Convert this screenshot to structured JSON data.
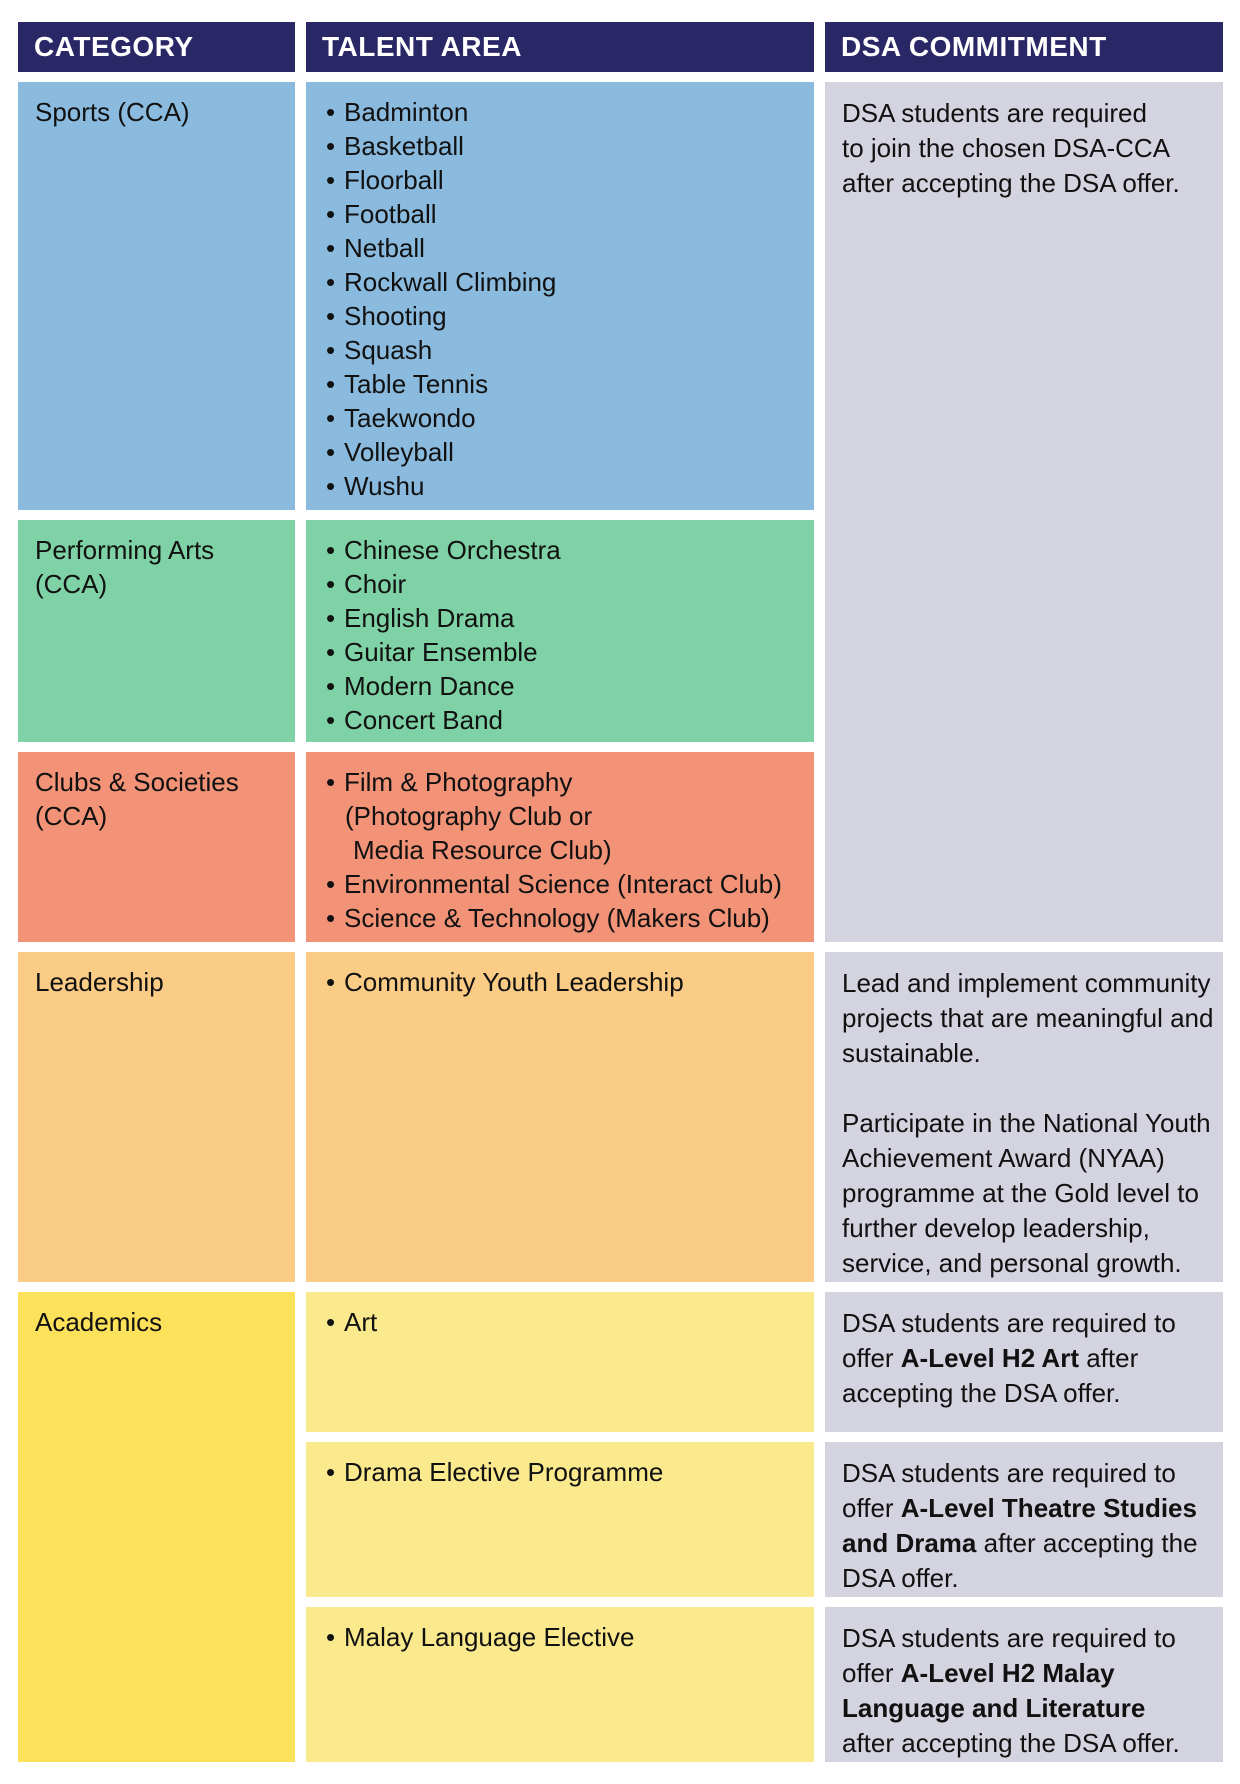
{
  "header": {
    "category": "CATEGORY",
    "talent_area": "TALENT AREA",
    "dsa_commitment": "DSA COMMITMENT"
  },
  "bullet": "•",
  "sports": {
    "category": "Sports (CCA)",
    "talents": [
      "Badminton",
      "Basketball",
      "Floorball",
      "Football",
      "Netball",
      "Rockwall Climbing",
      "Shooting",
      "Squash",
      "Table Tennis",
      "Taekwondo",
      "Volleyball",
      "Wushu"
    ],
    "commitment_lines": [
      "DSA students are required",
      "to join the chosen DSA-CCA",
      "after accepting the DSA offer."
    ]
  },
  "performing_arts": {
    "category": "Performing Arts (CCA)",
    "talents": [
      "Chinese Orchestra",
      "Choir",
      "English Drama",
      "Guitar Ensemble",
      "Modern Dance",
      "Concert Band"
    ]
  },
  "clubs": {
    "category": "Clubs & Societies (CCA)",
    "film_lines": [
      "Film & Photography",
      "(Photography Club or",
      "Media Resource Club)"
    ],
    "talents": [
      "Environmental Science (Interact Club)",
      "Science & Technology (Makers Club)"
    ]
  },
  "leadership": {
    "category": "Leadership",
    "talent": "Community Youth Leadership",
    "commitment_para1_lines": [
      "Lead and implement community",
      "projects that are meaningful and",
      "sustainable."
    ],
    "commitment_para2_lines": [
      "Participate in the National Youth",
      "Achievement Award (NYAA)",
      "programme at the Gold level to",
      "further develop leadership,",
      "service, and personal growth."
    ]
  },
  "academics": {
    "category": "Academics",
    "art": {
      "talent": "Art",
      "commitment_lines": [
        {
          "pre": "DSA students are required to",
          "bold": "",
          "post": ""
        },
        {
          "pre": "offer ",
          "bold": "A-Level H2 Art",
          "post": " after"
        },
        {
          "pre": "accepting the DSA offer.",
          "bold": "",
          "post": ""
        }
      ]
    },
    "drama": {
      "talent": "Drama Elective Programme",
      "commitment_lines": [
        {
          "pre": "DSA students are required to",
          "bold": "",
          "post": ""
        },
        {
          "pre": "offer ",
          "bold": "A-Level Theatre Studies",
          "post": ""
        },
        {
          "pre": "",
          "bold": "and Drama",
          "post": " after accepting the"
        },
        {
          "pre": "DSA offer.",
          "bold": "",
          "post": ""
        }
      ]
    },
    "malay": {
      "talent": "Malay Language Elective",
      "commitment_lines": [
        {
          "pre": "DSA students are required to",
          "bold": "",
          "post": ""
        },
        {
          "pre": "offer ",
          "bold": "A-Level H2 Malay",
          "post": ""
        },
        {
          "pre": "",
          "bold": "Language and Literature",
          "post": ""
        },
        {
          "pre": "after accepting the DSA offer.",
          "bold": "",
          "post": ""
        }
      ]
    }
  },
  "colors": {
    "header_bg": "#2A2766",
    "header_text": "#FFFFFF",
    "sports_bg": "#8ABADD",
    "performing_arts_bg": "#7FD2A5",
    "clubs_bg": "#F29377",
    "leadership_bg": "#FBCC85",
    "academics_bg": "#FCE15A",
    "academics_sub_bg": "#FBE98D",
    "commitment_bg": "#D4D3E0",
    "body_text": "#111111"
  }
}
